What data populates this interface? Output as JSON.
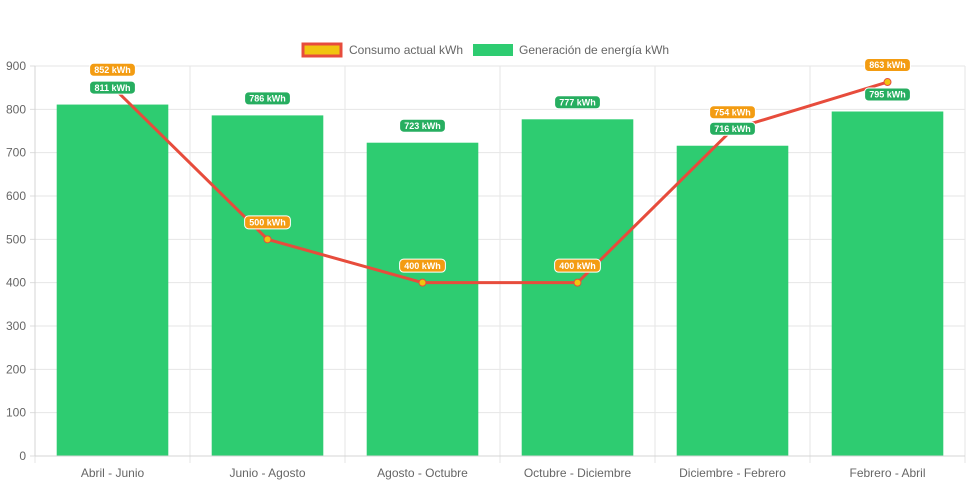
{
  "chart_data": {
    "type": "bar",
    "categories": [
      "Abril - Junio",
      "Junio - Agosto",
      "Agosto - Octubre",
      "Octubre - Diciembre",
      "Diciembre - Febrero",
      "Febrero - Abril"
    ],
    "series": [
      {
        "name": "Consumo actual kWh",
        "render": "line",
        "values": [
          852,
          500,
          400,
          400,
          754,
          863
        ],
        "labels": [
          "852 kWh",
          "500 kWh",
          "400 kWh",
          "400 kWh",
          "754 kWh",
          "863 kWh"
        ],
        "color": "#e74c3c",
        "fill_color": "#f1c40f",
        "label_bg": "#f39c12"
      },
      {
        "name": "Generación de energía kWh",
        "render": "bar",
        "values": [
          811,
          786,
          723,
          777,
          716,
          795
        ],
        "labels": [
          "811 kWh",
          "786 kWh",
          "723 kWh",
          "777 kWh",
          "716 kWh",
          "795 kWh"
        ],
        "color": "#2ecc71",
        "label_bg": "#27ae60"
      }
    ],
    "y_ticks": [
      "0",
      "100",
      "200",
      "300",
      "400",
      "500",
      "600",
      "700",
      "800",
      "900"
    ],
    "ylim": [
      0,
      900
    ],
    "grid": true,
    "legend_position": "top"
  }
}
